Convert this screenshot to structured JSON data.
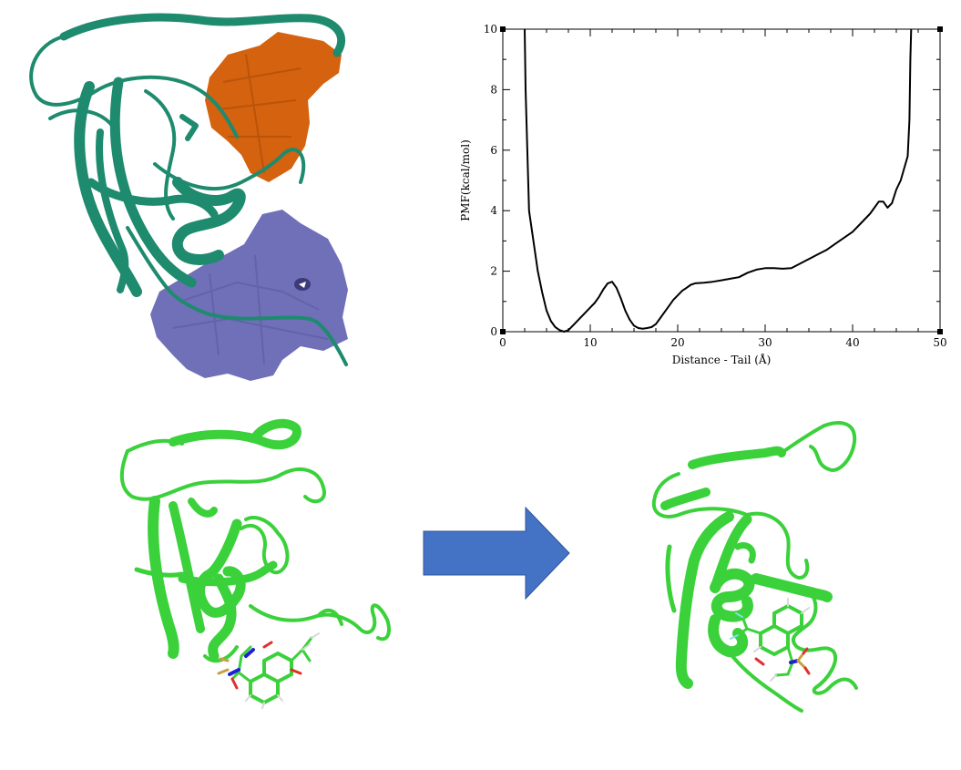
{
  "colors": {
    "teal_ribbon": "#1e8a6e",
    "orange_surface": "#d4620f",
    "purple_surface": "#7070b8",
    "green_ribbon": "#3ad13a",
    "arrow_fill": "#4472c4",
    "arrow_stroke": "#2f5597",
    "curve": "#000000"
  },
  "figures": {
    "top_left": {
      "icon": "protein-structure-with-binding-surfaces"
    },
    "bottom_left": {
      "icon": "protein-ligand-bound-state"
    },
    "arrow": {
      "icon": "right-arrow-icon"
    },
    "bottom_right": {
      "icon": "protein-ligand-displaced-state"
    }
  },
  "chart_data": {
    "type": "line",
    "title": "",
    "xlabel": "Distance - Tail (Å)",
    "ylabel": "PMF(kcal/mol)",
    "xlim": [
      0,
      50
    ],
    "ylim": [
      0,
      10
    ],
    "x_ticks": [
      "0",
      "10",
      "20",
      "30",
      "40",
      "50"
    ],
    "y_ticks": [
      "0",
      "2",
      "4",
      "6",
      "8",
      "10"
    ],
    "grid": false,
    "legend": "none",
    "series": [
      {
        "x": [
          2.5,
          2.6,
          2.8,
          3.0,
          3.5,
          4.0,
          4.5,
          5.0,
          5.5,
          6.0,
          6.5,
          7.0,
          7.5,
          8.0,
          8.5,
          9.0,
          9.5,
          10.0,
          10.5,
          11.0,
          11.5,
          12.0,
          12.5,
          13.0,
          13.5,
          14.0,
          14.5,
          15.0,
          15.5,
          16.0,
          16.5,
          17.0,
          17.5,
          18.0,
          18.5,
          19.0,
          19.5,
          20.0,
          20.5,
          21.0,
          21.5,
          22.0,
          23.0,
          24.0,
          25.0,
          26.0,
          27.0,
          28.0,
          29.0,
          30.0,
          31.0,
          32.0,
          33.0,
          34.0,
          35.0,
          36.0,
          37.0,
          38.0,
          39.0,
          40.0,
          41.0,
          42.0,
          42.5,
          43.0,
          43.5,
          44.0,
          44.5,
          45.0,
          45.5,
          46.0,
          46.3,
          46.5,
          46.6,
          46.7
        ],
        "y": [
          10.0,
          8.0,
          6.0,
          4.0,
          3.0,
          2.0,
          1.3,
          0.7,
          0.35,
          0.15,
          0.05,
          0.0,
          0.05,
          0.2,
          0.35,
          0.5,
          0.65,
          0.8,
          0.95,
          1.15,
          1.4,
          1.6,
          1.65,
          1.45,
          1.1,
          0.7,
          0.4,
          0.2,
          0.12,
          0.1,
          0.12,
          0.15,
          0.25,
          0.45,
          0.65,
          0.85,
          1.05,
          1.2,
          1.35,
          1.45,
          1.55,
          1.6,
          1.62,
          1.65,
          1.7,
          1.75,
          1.8,
          1.95,
          2.05,
          2.1,
          2.1,
          2.08,
          2.1,
          2.25,
          2.4,
          2.55,
          2.7,
          2.9,
          3.1,
          3.3,
          3.6,
          3.9,
          4.1,
          4.3,
          4.3,
          4.1,
          4.25,
          4.7,
          5.0,
          5.5,
          5.8,
          7.0,
          9.0,
          10.0
        ]
      }
    ]
  }
}
